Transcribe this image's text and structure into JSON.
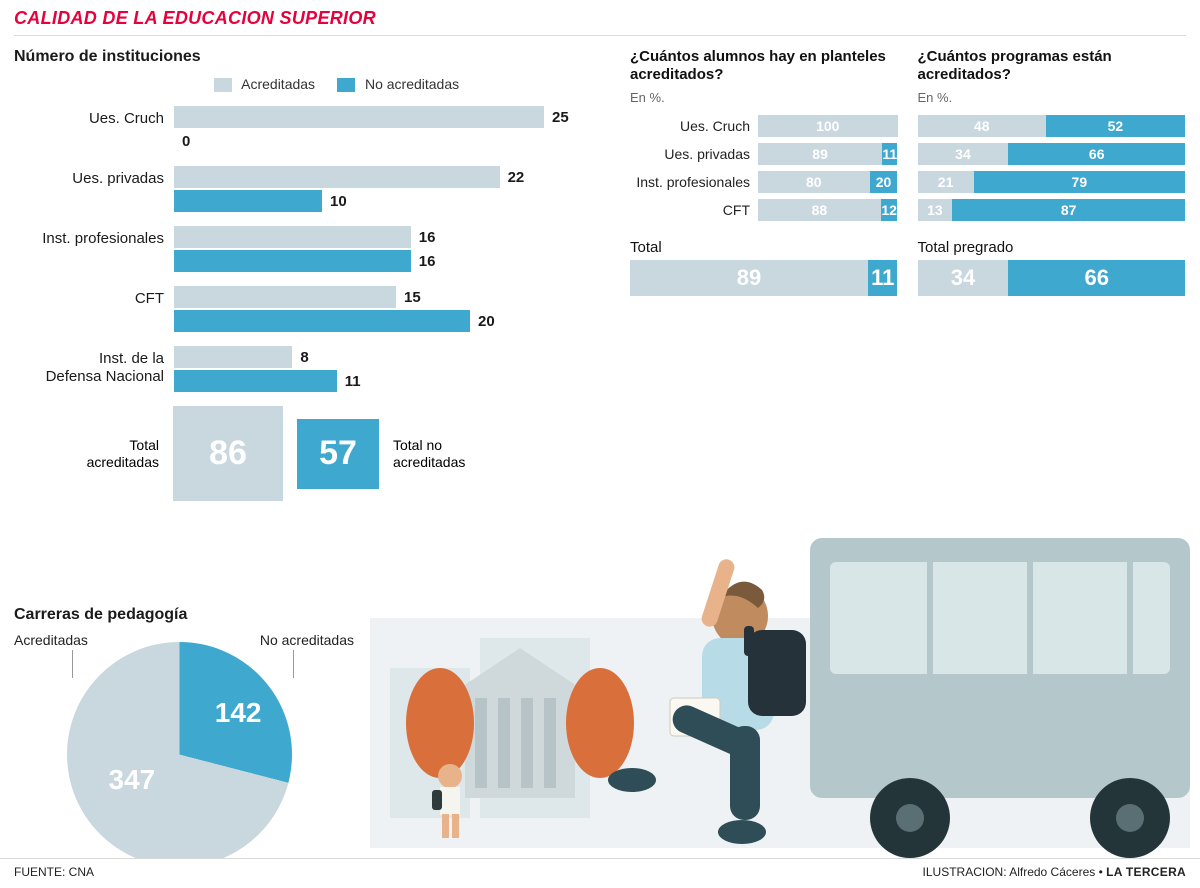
{
  "colors": {
    "accred": "#c9d7df",
    "noaccred": "#3fa8cf",
    "title": "#e6003c",
    "text": "#1a1a1a",
    "bg": "#ffffff"
  },
  "title": "CALIDAD DE LA EDUCACION SUPERIOR",
  "instituciones": {
    "heading": "Número de instituciones",
    "legend": {
      "a": "Acreditadas",
      "b": "No acreditadas"
    },
    "max": 25,
    "rows": [
      {
        "label": "Ues. Cruch",
        "a": 25,
        "b": 0
      },
      {
        "label": "Ues. privadas",
        "a": 22,
        "b": 10
      },
      {
        "label": "Inst. profesionales",
        "a": 16,
        "b": 16
      },
      {
        "label": "CFT",
        "a": 15,
        "b": 20
      },
      {
        "label": "Inst. de la\nDefensa Nacional",
        "a": 8,
        "b": 11
      }
    ],
    "totals": {
      "a_label": "Total\nacreditadas",
      "a_value": 86,
      "b_label": "Total no\nacreditadas",
      "b_value": 57
    }
  },
  "alumnos": {
    "title": "¿Cuántos alumnos hay en planteles acreditados?",
    "sub": "En %.",
    "rows": [
      {
        "label": "Ues. Cruch",
        "a": 100,
        "b": 0
      },
      {
        "label": "Ues. privadas",
        "a": 89,
        "b": 11
      },
      {
        "label": "Inst. profesionales",
        "a": 80,
        "b": 20
      },
      {
        "label": "CFT",
        "a": 88,
        "b": 12
      }
    ],
    "total_label": "Total",
    "total": {
      "a": 89,
      "b": 11
    }
  },
  "programas": {
    "title": "¿Cuántos programas están acreditados?",
    "sub": "En %.",
    "rows": [
      {
        "a": 48,
        "b": 52
      },
      {
        "a": 34,
        "b": 66
      },
      {
        "a": 21,
        "b": 79
      },
      {
        "a": 13,
        "b": 87
      }
    ],
    "total_label": "Total pregrado",
    "total": {
      "a": 34,
      "b": 66
    }
  },
  "pedagogia": {
    "heading": "Carreras de pedagogía",
    "legend": {
      "a": "Acreditadas",
      "b": "No acreditadas"
    },
    "a_value": 347,
    "b_value": 142
  },
  "footer": {
    "source": "FUENTE: CNA",
    "illustration": "ILUSTRACION: Alfredo Cáceres • ",
    "publication": "LA TERCERA"
  }
}
